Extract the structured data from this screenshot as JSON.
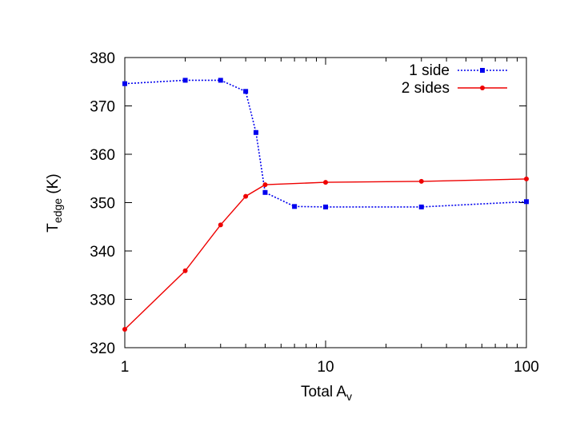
{
  "chart_data": {
    "type": "line",
    "xscale": "log",
    "xlim": [
      1,
      100
    ],
    "ylim": [
      320,
      380
    ],
    "xticks": [
      1,
      10,
      100
    ],
    "xtick_labels": [
      "1",
      "10",
      "100"
    ],
    "yticks": [
      320,
      330,
      340,
      350,
      360,
      370,
      380
    ],
    "ytick_labels": [
      "320",
      "330",
      "340",
      "350",
      "360",
      "370",
      "380"
    ],
    "xlabel": {
      "main": "Total A",
      "sub": "v"
    },
    "ylabel": {
      "main": "T",
      "sub": "edge",
      "suffix": " (K)"
    },
    "legend_position": "top-right",
    "grid": false,
    "series": [
      {
        "name": "1 side",
        "color": "#0000ee",
        "line_style": "dotted",
        "marker": "square",
        "x": [
          1,
          2,
          3,
          4,
          4.5,
          5,
          7,
          10,
          30,
          100
        ],
        "y": [
          374.6,
          375.3,
          375.3,
          373.0,
          364.5,
          352.1,
          349.2,
          349.1,
          349.1,
          350.2
        ]
      },
      {
        "name": "2 sides",
        "color": "#ee0000",
        "line_style": "solid",
        "marker": "circle",
        "x": [
          1,
          2,
          3,
          4,
          5,
          10,
          30,
          100
        ],
        "y": [
          323.8,
          335.9,
          345.4,
          351.3,
          353.7,
          354.2,
          354.4,
          354.9
        ]
      }
    ]
  }
}
